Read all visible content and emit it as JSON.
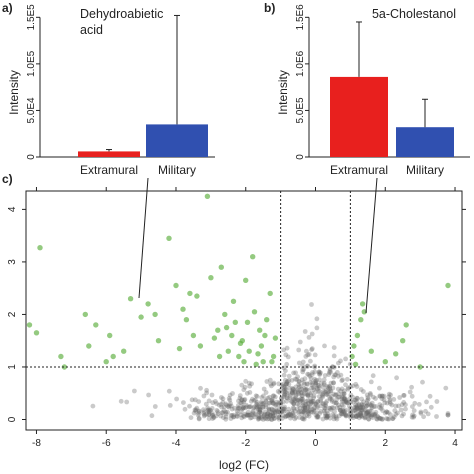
{
  "chart_data": [
    {
      "panel": "a)",
      "type": "bar",
      "title": "Dehydroabietic\nacid",
      "ylabel": "Intensity",
      "ylim": [
        0,
        160000
      ],
      "yticks": [
        {
          "value": 0,
          "label": "0"
        },
        {
          "value": 50000,
          "label": "5.0E4"
        },
        {
          "value": 100000,
          "label": "1.0E5"
        },
        {
          "value": 150000,
          "label": "1.5E5"
        }
      ],
      "categories": [
        "Extramural",
        "Military"
      ],
      "values": [
        6000,
        35000
      ],
      "error_upper": [
        8000,
        152000
      ],
      "colors": [
        "#e8201e",
        "#3050b0"
      ]
    },
    {
      "panel": "b)",
      "type": "bar",
      "title": "5a-Cholestanol",
      "ylabel": "Intensity",
      "ylim": [
        0,
        1600000
      ],
      "yticks": [
        {
          "value": 0,
          "label": "0"
        },
        {
          "value": 500000,
          "label": "5.0E5"
        },
        {
          "value": 1000000,
          "label": "1.0E6"
        },
        {
          "value": 1500000,
          "label": "1.5E6"
        }
      ],
      "categories": [
        "Extramural",
        "Military"
      ],
      "values": [
        860000,
        320000
      ],
      "error_upper": [
        1450000,
        620000
      ],
      "colors": [
        "#e8201e",
        "#3050b0"
      ]
    },
    {
      "panel": "c)",
      "type": "scatter",
      "xlabel": "log2 (FC)",
      "ylabel": "",
      "xlim": [
        -8.3,
        4.2
      ],
      "ylim": [
        -0.2,
        4.35
      ],
      "xticks": [
        -8,
        -6,
        -4,
        -2,
        0,
        2,
        4
      ],
      "yticks": [
        0,
        1,
        2,
        3,
        4
      ],
      "thresholds": {
        "x": [
          -1,
          1
        ],
        "y": 1
      },
      "colors": {
        "significant": "#5aad3c",
        "not_significant": "#666666"
      },
      "significant_points": [
        [
          -8.2,
          1.8
        ],
        [
          -8.0,
          1.65
        ],
        [
          -7.9,
          3.27
        ],
        [
          -7.3,
          1.2
        ],
        [
          -7.2,
          1.0
        ],
        [
          -6.5,
          1.4
        ],
        [
          -6.3,
          1.8
        ],
        [
          -6.0,
          1.1
        ],
        [
          -5.8,
          1.2
        ],
        [
          -5.5,
          1.3
        ],
        [
          -5.3,
          2.3
        ],
        [
          -5.0,
          1.95
        ],
        [
          -4.8,
          2.2
        ],
        [
          -4.5,
          1.5
        ],
        [
          -4.2,
          3.45
        ],
        [
          -4.0,
          2.55
        ],
        [
          -3.8,
          2.1
        ],
        [
          -3.6,
          2.4
        ],
        [
          -3.5,
          1.6
        ],
        [
          -3.3,
          1.4
        ],
        [
          -3.1,
          4.25
        ],
        [
          -3.0,
          2.7
        ],
        [
          -2.9,
          1.55
        ],
        [
          -2.8,
          1.7
        ],
        [
          -2.7,
          2.9
        ],
        [
          -2.6,
          2.0
        ],
        [
          -2.5,
          1.3
        ],
        [
          -2.4,
          1.6
        ],
        [
          -2.3,
          1.85
        ],
        [
          -2.2,
          1.2
        ],
        [
          -2.1,
          1.5
        ],
        [
          -2.0,
          2.65
        ],
        [
          -1.9,
          1.3
        ],
        [
          -1.8,
          3.1
        ],
        [
          -1.7,
          1.05
        ],
        [
          -1.6,
          1.7
        ],
        [
          -1.5,
          1.1
        ],
        [
          -1.4,
          1.9
        ],
        [
          -1.3,
          2.4
        ],
        [
          -1.2,
          1.2
        ],
        [
          -1.15,
          1.55
        ],
        [
          -4.6,
          2.0
        ],
        [
          -3.7,
          1.9
        ],
        [
          -2.35,
          2.25
        ],
        [
          -1.95,
          1.85
        ],
        [
          -1.75,
          2.05
        ],
        [
          -1.55,
          1.4
        ],
        [
          -2.15,
          1.45
        ],
        [
          -2.55,
          1.75
        ],
        [
          -3.9,
          1.35
        ],
        [
          -6.6,
          2.0
        ],
        [
          -5.9,
          1.6
        ],
        [
          -2.05,
          1.1
        ],
        [
          -1.65,
          1.25
        ],
        [
          -1.45,
          1.6
        ],
        [
          -2.75,
          1.2
        ],
        [
          -3.4,
          2.35
        ],
        [
          -1.25,
          1.1
        ],
        [
          1.05,
          1.2
        ],
        [
          1.1,
          1.4
        ],
        [
          1.2,
          1.6
        ],
        [
          1.3,
          1.9
        ],
        [
          1.4,
          2.05
        ],
        [
          1.35,
          2.2
        ],
        [
          1.6,
          1.3
        ],
        [
          2.0,
          1.1
        ],
        [
          2.3,
          1.25
        ],
        [
          2.5,
          1.5
        ],
        [
          2.6,
          1.8
        ],
        [
          3.0,
          1.0
        ],
        [
          3.8,
          2.55
        ],
        [
          1.15,
          1.05
        ]
      ],
      "nonsignificant_count": 900
    }
  ]
}
